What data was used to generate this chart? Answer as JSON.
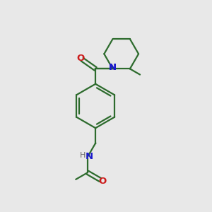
{
  "background_color": "#e8e8e8",
  "bond_color": "#2d6b2d",
  "nitrogen_color": "#1a1acc",
  "oxygen_color": "#cc1a1a",
  "line_width": 1.6,
  "fig_size": [
    3.0,
    3.0
  ],
  "dpi": 100,
  "xlim": [
    0,
    10
  ],
  "ylim": [
    0,
    10
  ]
}
